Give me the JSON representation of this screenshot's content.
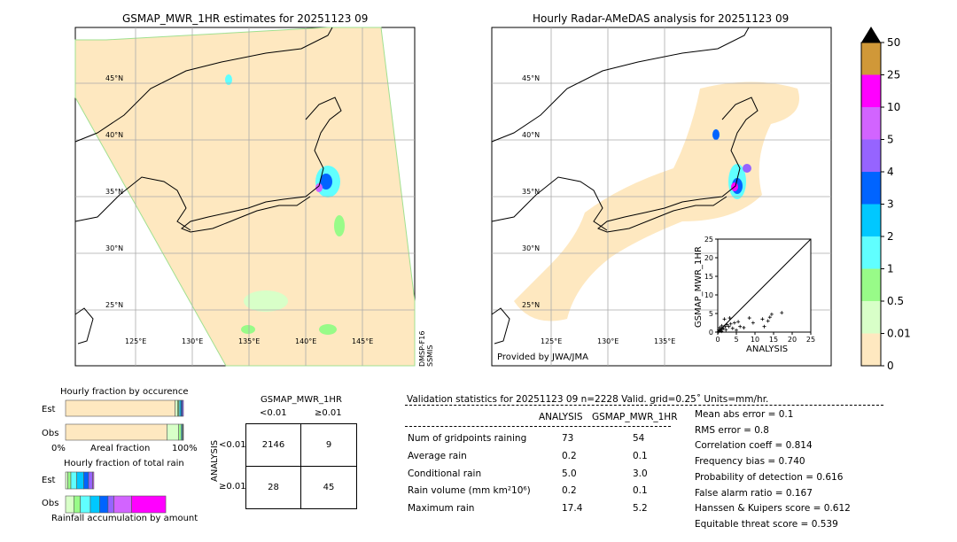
{
  "left_map": {
    "title": "GSMAP_MWR_1HR estimates for 20251123 09",
    "sensor_label": "DMSP-F16\nSSMIS",
    "lat_labels": [
      "45°N",
      "40°N",
      "35°N",
      "30°N",
      "25°N"
    ],
    "lon_labels": [
      "125°E",
      "130°E",
      "135°E",
      "140°E",
      "145°E"
    ]
  },
  "right_map": {
    "title": "Hourly Radar-AMeDAS analysis for 20251123 09",
    "credit": "Provided by JWA/JMA",
    "lat_labels": [
      "45°N",
      "40°N",
      "35°N",
      "30°N",
      "25°N"
    ],
    "lon_labels": [
      "125°E",
      "130°E",
      "135°E"
    ]
  },
  "colorbar": {
    "ticks": [
      "0",
      "0.01",
      "0.5",
      "1",
      "2",
      "3",
      "4",
      "5",
      "10",
      "25",
      "50"
    ],
    "colors": [
      "#fee8c0",
      "#d8ffc8",
      "#98fb88",
      "#60ffff",
      "#00c8ff",
      "#0064ff",
      "#9664ff",
      "#d264ff",
      "#ff00ff",
      "#d09838"
    ],
    "extend": "max"
  },
  "chart_data": [
    {
      "type": "scatter",
      "xlabel": "ANALYSIS",
      "ylabel": "GSMAP_MWR_1HR",
      "xlim": [
        0,
        25
      ],
      "ylim": [
        0,
        25
      ],
      "ticks": [
        "0",
        "5",
        "10",
        "15",
        "20",
        "25"
      ],
      "points": [
        [
          0.2,
          0.1
        ],
        [
          0.5,
          0.3
        ],
        [
          0.8,
          0.5
        ],
        [
          1,
          0.2
        ],
        [
          1.2,
          0.8
        ],
        [
          0.3,
          0.6
        ],
        [
          1.5,
          1
        ],
        [
          2,
          1.5
        ],
        [
          1.8,
          3.5
        ],
        [
          2.5,
          2
        ],
        [
          3,
          1.5
        ],
        [
          3.2,
          3.8
        ],
        [
          3.5,
          2.2
        ],
        [
          4,
          1
        ],
        [
          4.5,
          2.5
        ],
        [
          5,
          0.5
        ],
        [
          5.5,
          2.8
        ],
        [
          6,
          1.5
        ],
        [
          7,
          1.2
        ],
        [
          8.5,
          3.8
        ],
        [
          9.5,
          2.5
        ],
        [
          12,
          3.5
        ],
        [
          12.5,
          1.5
        ],
        [
          13.5,
          3
        ],
        [
          14,
          4
        ],
        [
          14.5,
          4.8
        ],
        [
          17.2,
          5.2
        ],
        [
          0.6,
          1.2
        ],
        [
          1.1,
          1.7
        ],
        [
          2.2,
          0.6
        ]
      ]
    },
    {
      "type": "bar",
      "title": "Hourly fraction by occurence",
      "categories": [
        "Est",
        "Obs"
      ],
      "xlabel": "Areal fraction",
      "tick_labels": [
        "0%",
        "100%"
      ],
      "series": [
        {
          "category": "Est",
          "fractions": [
            0.93,
            0.02,
            0.01,
            0.01,
            0.01,
            0.01,
            0.01
          ]
        },
        {
          "category": "Obs",
          "fractions": [
            0.86,
            0.1,
            0.02,
            0.01,
            0.005,
            0.003,
            0.002
          ]
        }
      ]
    },
    {
      "type": "bar",
      "title": "Hourly fraction of total rain",
      "categories": [
        "Est",
        "Obs"
      ],
      "xlabel": "Rainfall accumulation by amount",
      "series": [
        {
          "category": "Est",
          "fractions": [
            0.02,
            0.025,
            0.05,
            0.06,
            0.04,
            0.035,
            0.01
          ]
        },
        {
          "category": "Obs",
          "fractions": [
            0.07,
            0.055,
            0.085,
            0.08,
            0.07,
            0.05,
            0.15,
            0.29
          ]
        }
      ]
    }
  ],
  "contingency": {
    "title": "GSMAP_MWR_1HR",
    "col_labels": [
      "<0.01",
      "≥0.01"
    ],
    "row_axis": "ANALYSIS",
    "row_labels": [
      "<0.01",
      "≥0.01"
    ],
    "cells": [
      [
        "2146",
        "9"
      ],
      [
        "28",
        "45"
      ]
    ]
  },
  "stats": {
    "header": "Validation statistics for 20251123 09  n=2228 Valid. grid=0.25˚ Units=mm/hr.",
    "col1": "ANALYSIS",
    "col2": "GSMAP_MWR_1HR",
    "rows": [
      {
        "label": "Num of gridpoints raining",
        "a": "73",
        "g": "54"
      },
      {
        "label": "Average rain",
        "a": "0.2",
        "g": "0.1"
      },
      {
        "label": "Conditional rain",
        "a": "5.0",
        "g": "3.0"
      },
      {
        "label": "Rain volume (mm km²10⁶)",
        "a": "0.2",
        "g": "0.1"
      },
      {
        "label": "Maximum rain",
        "a": "17.4",
        "g": "5.2"
      }
    ],
    "scores": [
      "Mean abs error =    0.1",
      "RMS error =    0.8",
      "Correlation coeff =  0.814",
      "Frequency bias =  0.740",
      "Probability of detection =  0.616",
      "False alarm ratio =  0.167",
      "Hanssen & Kuipers score =  0.612",
      "Equitable threat score =  0.539"
    ]
  }
}
